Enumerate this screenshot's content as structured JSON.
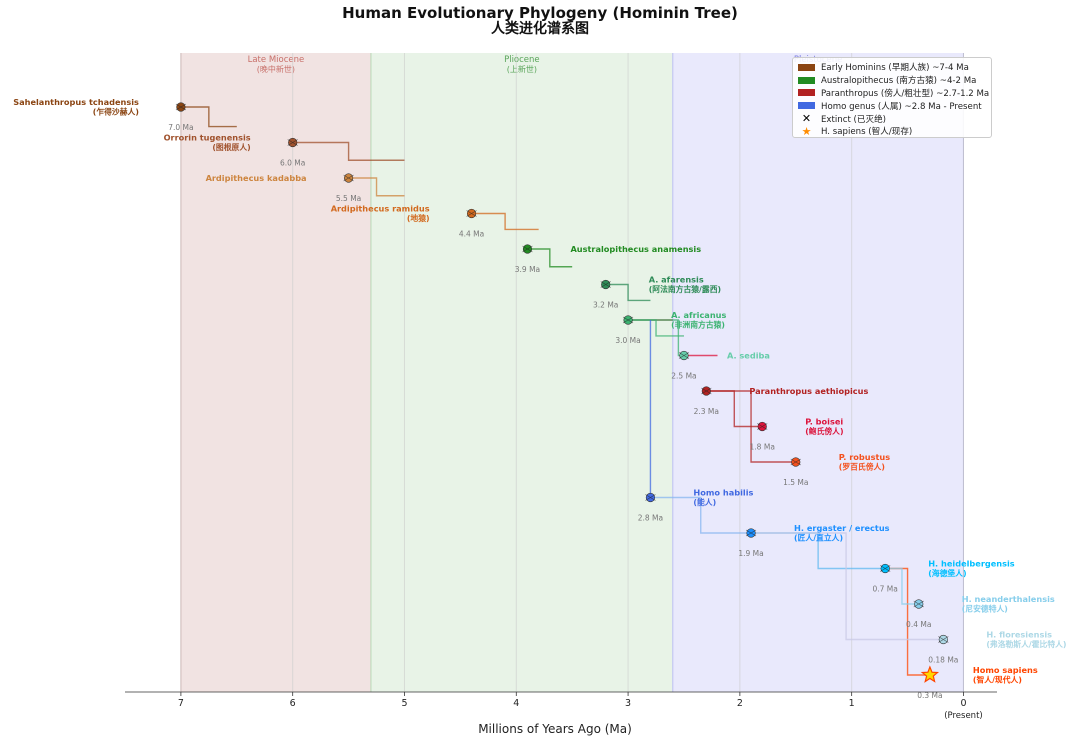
{
  "title": "Human Evolutionary Phylogeny (Hominin Tree)",
  "subtitle": "人类进化谱系图",
  "chart_data": {
    "type": "scatter",
    "xlabel": "Millions of Years Ago (Ma)",
    "xlim": [
      7.5,
      -0.3
    ],
    "x_ticks": [
      {
        "value": 7,
        "label": "7"
      },
      {
        "value": 6,
        "label": "6"
      },
      {
        "value": 5,
        "label": "5"
      },
      {
        "value": 4,
        "label": "4"
      },
      {
        "value": 3,
        "label": "3"
      },
      {
        "value": 2,
        "label": "2"
      },
      {
        "value": 1,
        "label": "1"
      },
      {
        "value": 0,
        "label": "0"
      }
    ],
    "present_label": "(Present)",
    "grid": true,
    "epochs": [
      {
        "name": "Late Miocene",
        "name_cn": "(晚中新世)",
        "start": 7.0,
        "end": 5.3,
        "color": "#c9908a",
        "text_color": "#c8706a"
      },
      {
        "name": "Pliocene",
        "name_cn": "(上新世)",
        "start": 5.3,
        "end": 2.6,
        "color": "#a3cfa1",
        "text_color": "#5aa55a"
      },
      {
        "name": "Pleistocene",
        "name_cn": "",
        "start": 2.6,
        "end": 0.0,
        "color": "#a9a9f5",
        "text_color": "#7a7ae0"
      }
    ],
    "legend": {
      "placement": "top-right",
      "items": [
        {
          "label": "Early Hominins (早期人族) ~7-4 Ma",
          "color": "#8b4513",
          "kind": "swatch"
        },
        {
          "label": "Australopithecus (南方古猿) ~4-2 Ma",
          "color": "#228b22",
          "kind": "swatch"
        },
        {
          "label": "Paranthropus (傍人/粗壮型) ~2.7-1.2 Ma",
          "color": "#b22222",
          "kind": "swatch"
        },
        {
          "label": "Homo genus (人属) ~2.8 Ma - Present",
          "color": "#4169e1",
          "kind": "swatch"
        },
        {
          "label": "Extinct (已灭绝)",
          "color": "#000000",
          "kind": "x-mark"
        },
        {
          "label": "H. sapiens (智人/现存)",
          "color": "#ff8c00",
          "kind": "star"
        }
      ]
    },
    "species": [
      {
        "name": "Sahelanthropus tchadensis",
        "name_cn": "(乍得沙赫人)",
        "age": 7.0,
        "age_label": "7.0 Ma",
        "row": 0,
        "color": "#8b4513",
        "label_side": "left"
      },
      {
        "name": "Orrorin tugenensis",
        "name_cn": "(图根原人)",
        "age": 6.0,
        "age_label": "6.0 Ma",
        "row": 1,
        "color": "#a0522d",
        "label_side": "left"
      },
      {
        "name": "Ardipithecus kadabba",
        "name_cn": "",
        "age": 5.5,
        "age_label": "5.5 Ma",
        "row": 2,
        "color": "#cd853f",
        "label_side": "left"
      },
      {
        "name": "Ardipithecus ramidus",
        "name_cn": "(地猿)",
        "age": 4.4,
        "age_label": "4.4 Ma",
        "row": 3,
        "color": "#d2691e",
        "label_side": "left"
      },
      {
        "name": "Australopithecus anamensis",
        "name_cn": "",
        "age": 3.9,
        "age_label": "3.9 Ma",
        "row": 4,
        "color": "#228b22",
        "label_side": "right"
      },
      {
        "name": "A. afarensis",
        "name_cn": "(阿法南方古猿/露西)",
        "age": 3.2,
        "age_label": "3.2 Ma",
        "row": 5,
        "color": "#2e8b57",
        "label_side": "right"
      },
      {
        "name": "A. africanus",
        "name_cn": "(非洲南方古猿)",
        "age": 3.0,
        "age_label": "3.0 Ma",
        "row": 6,
        "color": "#3cb371",
        "label_side": "right"
      },
      {
        "name": "A. sediba",
        "name_cn": "",
        "age": 2.5,
        "age_label": "2.5 Ma",
        "row": 7,
        "color": "#66cdaa",
        "label_side": "right"
      },
      {
        "name": "Paranthropus aethiopicus",
        "name_cn": "",
        "age": 2.3,
        "age_label": "2.3 Ma",
        "row": 8,
        "color": "#b22222",
        "label_side": "right"
      },
      {
        "name": "P. boisei",
        "name_cn": "(鲍氏傍人)",
        "age": 1.8,
        "age_label": "1.8 Ma",
        "row": 9,
        "color": "#dc143c",
        "label_side": "right"
      },
      {
        "name": "P. robustus",
        "name_cn": "(罗百氏傍人)",
        "age": 1.5,
        "age_label": "1.5 Ma",
        "row": 10,
        "color": "#f4511e",
        "label_side": "right"
      },
      {
        "name": "Homo habilis",
        "name_cn": "(能人)",
        "age": 2.8,
        "age_label": "2.8 Ma",
        "row": 11,
        "color": "#4169e1",
        "label_side": "right"
      },
      {
        "name": "H. ergaster / erectus",
        "name_cn": "(匠人/直立人)",
        "age": 1.9,
        "age_label": "1.9 Ma",
        "row": 12,
        "color": "#1e90ff",
        "label_side": "right"
      },
      {
        "name": "H. heidelbergensis",
        "name_cn": "(海德堡人)",
        "age": 0.7,
        "age_label": "0.7 Ma",
        "row": 13,
        "color": "#00bfff",
        "label_side": "right"
      },
      {
        "name": "H. neanderthalensis",
        "name_cn": "(尼安德特人)",
        "age": 0.4,
        "age_label": "0.4 Ma",
        "row": 14,
        "color": "#87ceeb",
        "label_side": "right"
      },
      {
        "name": "H. floresiensis",
        "name_cn": "(弗洛勒斯人/霍比特人)",
        "age": 0.18,
        "age_label": "0.18 Ma",
        "row": 15,
        "color": "#add8e6",
        "label_side": "right"
      },
      {
        "name": "Homo sapiens",
        "name_cn": "(智人/现代人)",
        "age": 0.3,
        "age_label": "0.3 Ma",
        "row": 16,
        "color": "#ff4500",
        "label_side": "right",
        "extant": true
      }
    ],
    "branches": [
      {
        "from_age": 7.0,
        "from_row": 0,
        "to_age": 6.75,
        "color": "#8b4513",
        "to_row": 0.55,
        "end_age": 6.5
      },
      {
        "from_age": 6.0,
        "from_row": 1,
        "to_age": 5.5,
        "color": "#a0522d",
        "to_row": 1.5,
        "end_age": 5.0
      },
      {
        "from_age": 5.5,
        "from_row": 2,
        "to_age": 5.25,
        "color": "#cd853f",
        "to_row": 2.5,
        "end_age": 5.0
      },
      {
        "from_age": 4.4,
        "from_row": 3,
        "to_age": 4.1,
        "color": "#d2691e",
        "to_row": 3.45,
        "end_age": 3.8
      },
      {
        "from_age": 3.9,
        "from_row": 4,
        "to_age": 3.7,
        "color": "#228b22",
        "to_row": 4.5,
        "end_age": 3.5
      },
      {
        "from_age": 3.2,
        "from_row": 5,
        "to_age": 3.0,
        "color": "#2e8b57",
        "to_row": 5.45,
        "end_age": 2.8
      },
      {
        "from_age": 3.0,
        "from_row": 6,
        "to_age": 2.8,
        "color": "#b22222",
        "to_row": 6,
        "end_age": 2.6
      },
      {
        "from_age": 3.0,
        "from_row": 6,
        "to_age": 2.55,
        "color": "#3cb371",
        "to_row": 7,
        "end_age": 2.5
      },
      {
        "from_age": 3.0,
        "from_row": 6,
        "to_age": 2.75,
        "color": "#3cb371",
        "to_row": 6.45,
        "end_age": 2.5
      },
      {
        "from_age": 2.5,
        "from_row": 7,
        "to_age": 2.5,
        "color": "#dc143c",
        "to_row": 7,
        "end_age": 2.2
      },
      {
        "from_age": 2.3,
        "from_row": 8,
        "to_age": 2.05,
        "color": "#b22222",
        "to_row": 9,
        "end_age": 1.8
      },
      {
        "from_age": 2.3,
        "from_row": 8,
        "to_age": 1.9,
        "color": "#b22222",
        "to_row": 10,
        "end_age": 1.5
      },
      {
        "from_age": 2.8,
        "from_row": 6,
        "to_age": 2.8,
        "color": "#4169e1",
        "to_row": 11,
        "end_age": 2.8
      },
      {
        "from_age": 2.8,
        "from_row": 11,
        "to_age": 2.35,
        "color": "#87b5f0",
        "to_row": 12,
        "end_age": 1.9
      },
      {
        "from_age": 1.9,
        "from_row": 12,
        "to_age": 1.3,
        "color": "#5fb8f0",
        "to_row": 13,
        "end_age": 0.7
      },
      {
        "from_age": 0.7,
        "from_row": 13,
        "to_age": 0.5,
        "color": "#ff4500",
        "to_row": 16,
        "end_age": 0.3
      },
      {
        "from_age": 0.7,
        "from_row": 13,
        "to_age": 0.55,
        "color": "#87ceeb",
        "to_row": 14,
        "end_age": 0.4
      },
      {
        "from_age": 1.9,
        "from_row": 12,
        "to_age": 1.05,
        "color": "#c8c8e6",
        "to_row": 15,
        "end_age": 0.18
      }
    ]
  }
}
